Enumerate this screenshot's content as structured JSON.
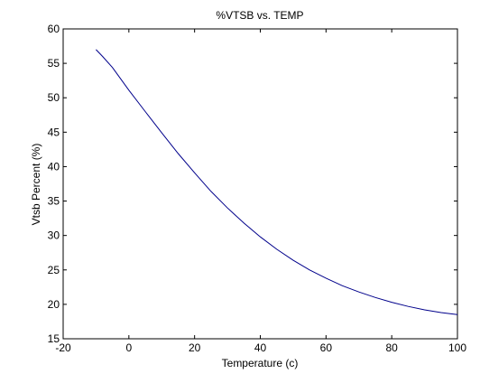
{
  "chart_data": {
    "type": "line",
    "title": "%VTSB vs. TEMP",
    "xlabel": "Temperature (c)",
    "ylabel": "Vtsb Percent (%)",
    "xlim": [
      -20,
      100
    ],
    "ylim": [
      15,
      60
    ],
    "xticks": [
      -20,
      0,
      20,
      40,
      60,
      80,
      100
    ],
    "yticks": [
      15,
      20,
      25,
      30,
      35,
      40,
      45,
      50,
      55,
      60
    ],
    "grid": false,
    "line_color": "#00008b",
    "series": [
      {
        "x": [
          -10,
          -8,
          -5,
          0,
          5,
          10,
          15,
          20,
          25,
          30,
          35,
          40,
          45,
          50,
          55,
          60,
          65,
          70,
          75,
          80,
          85,
          90,
          95,
          100
        ],
        "y": [
          57.0,
          56.0,
          54.4,
          51.1,
          48.0,
          44.9,
          41.9,
          39.1,
          36.4,
          34.0,
          31.8,
          29.8,
          28.0,
          26.4,
          25.0,
          23.8,
          22.7,
          21.8,
          21.0,
          20.3,
          19.7,
          19.2,
          18.8,
          18.5
        ]
      }
    ]
  }
}
